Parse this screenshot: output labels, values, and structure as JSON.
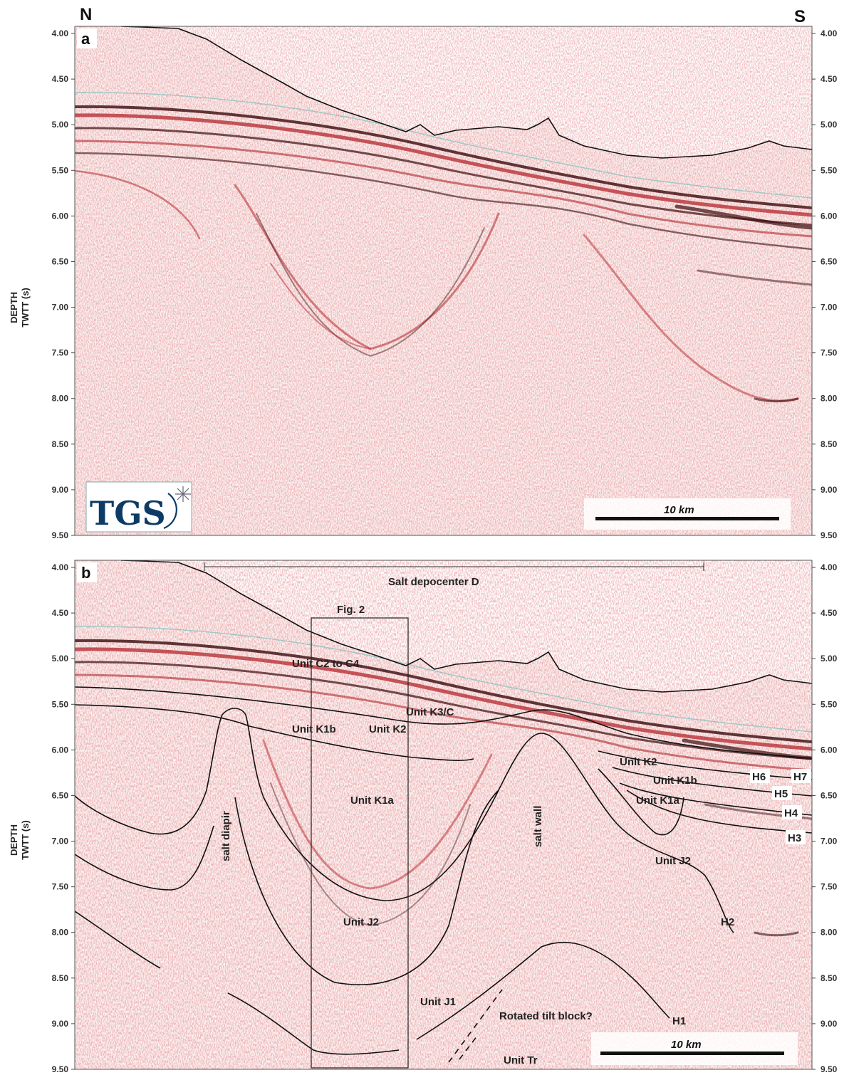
{
  "orientation": {
    "left": "N",
    "right": "S"
  },
  "axis": {
    "title_line1": "DEPTH",
    "title_line2": "TWTT (s)",
    "ticks": [
      "4.00",
      "4.50",
      "5.00",
      "5.50",
      "6.00",
      "6.50",
      "7.00",
      "7.50",
      "8.00",
      "8.50",
      "9.00",
      "9.50"
    ]
  },
  "panel_a": {
    "letter": "a",
    "logo": "TGS",
    "scale_bar": "10 km"
  },
  "panel_b": {
    "letter": "b",
    "depocenter_label": "Salt depocenter D",
    "box_label": "Fig. 2",
    "scale_bar": "10 km",
    "units": {
      "c2_c4": "Unit C2 to C4",
      "k3c": "Unit K3/C",
      "k1b_left": "Unit K1b",
      "k2_left": "Unit K2",
      "k1a_left": "Unit K1a",
      "j2_left": "Unit J2",
      "j1": "Unit J1",
      "tr": "Unit Tr",
      "k2_right": "Unit K2",
      "k1b_right": "Unit K1b",
      "k1a_right": "Unit K1a",
      "j2_right": "Unit J2",
      "salt_diapir": "salt diapir",
      "salt_wall": "salt wall",
      "tilt_block": "Rotated tilt block?"
    },
    "horizons": {
      "h1": "H1",
      "h2": "H2",
      "h3": "H3",
      "h4": "H4",
      "h5": "H5",
      "h6": "H6",
      "h7": "H7"
    }
  },
  "colors": {
    "seismic_red": "#b3262b",
    "seismic_dark": "#3a0a0c",
    "seismic_cyan": "#7fbfbf",
    "logo_blue": "#0d3b66",
    "interpretation_line": "#111111"
  }
}
